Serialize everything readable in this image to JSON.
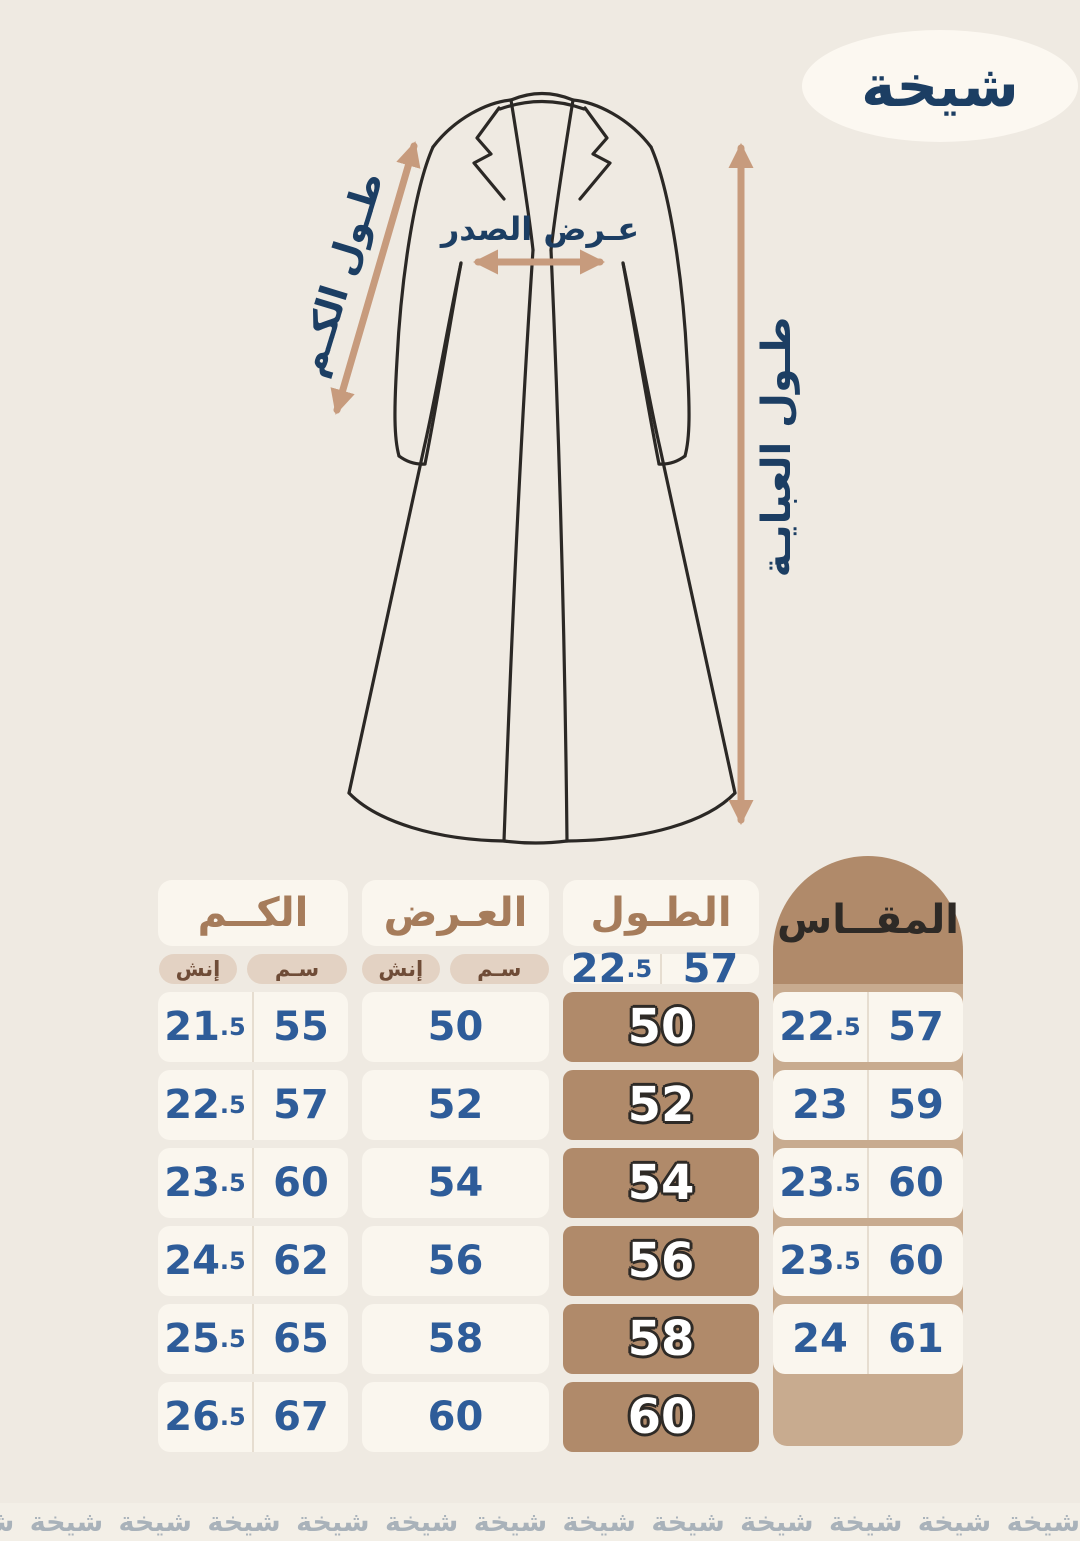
{
  "theme": {
    "page_bg": "#efeae2",
    "logo_bg": "#fcf8f1",
    "navy": "#1c3e63",
    "blue": "#2e5c99",
    "tan": "#c79b7d",
    "line": "#2b2825",
    "card_bg": "#faf6ee",
    "divider": "#e6ddd0",
    "brown_text": "#a67c5b",
    "pill_bg": "#e3d2c3",
    "pill_text": "#6f4c37",
    "size_col": "#b08a6a",
    "size_gap": "#c8ab8f",
    "outline": "#2e2a26",
    "header_dark": "#2e2a26",
    "footer_bg": "#f3efe7",
    "footer_text": "#a9b2ba"
  },
  "logo": {
    "text": "شيخة"
  },
  "diagram": {
    "labels": {
      "sleeve_length": "طـول الكـم",
      "chest_width": "عـرض الصدر",
      "abaya_length": "طـول العبايـة"
    }
  },
  "size_table": {
    "columns": [
      {
        "label": "الكــم",
        "units": [
          "إنش",
          "سـم"
        ]
      },
      {
        "label": "العـرض",
        "units": [
          "إنش",
          "سـم"
        ]
      },
      {
        "label": "الطـول",
        "units": []
      },
      {
        "label": "المقــاس",
        "units": []
      }
    ],
    "rows": [
      {
        "sleeve_in": "22.5",
        "sleeve_cm": "57",
        "width_in": "21.5",
        "width_cm": "55",
        "length": "50",
        "size": "50"
      },
      {
        "sleeve_in": "22.5",
        "sleeve_cm": "57",
        "width_in": "22.5",
        "width_cm": "57",
        "length": "52",
        "size": "52"
      },
      {
        "sleeve_in": "23",
        "sleeve_cm": "59",
        "width_in": "23.5",
        "width_cm": "60",
        "length": "54",
        "size": "54"
      },
      {
        "sleeve_in": "23.5",
        "sleeve_cm": "60",
        "width_in": "24.5",
        "width_cm": "62",
        "length": "56",
        "size": "56"
      },
      {
        "sleeve_in": "23.5",
        "sleeve_cm": "60",
        "width_in": "25.5",
        "width_cm": "65",
        "length": "58",
        "size": "58"
      },
      {
        "sleeve_in": "24",
        "sleeve_cm": "61",
        "width_in": "26.5",
        "width_cm": "67",
        "length": "60",
        "size": "60"
      }
    ]
  },
  "footer": {
    "repeated_text": "شيخة",
    "repeat_count": 44
  }
}
